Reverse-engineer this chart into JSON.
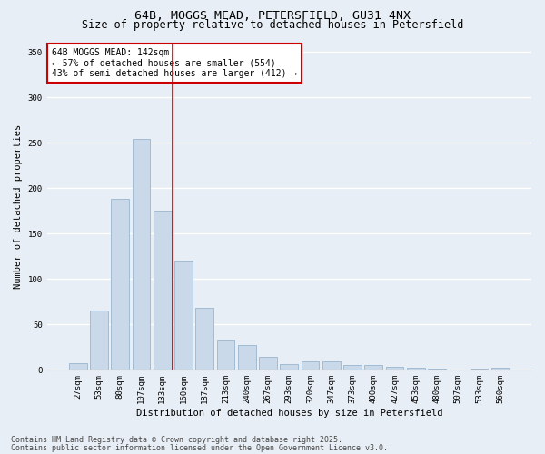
{
  "title1": "64B, MOGGS MEAD, PETERSFIELD, GU31 4NX",
  "title2": "Size of property relative to detached houses in Petersfield",
  "xlabel": "Distribution of detached houses by size in Petersfield",
  "ylabel": "Number of detached properties",
  "categories": [
    "27sqm",
    "53sqm",
    "80sqm",
    "107sqm",
    "133sqm",
    "160sqm",
    "187sqm",
    "213sqm",
    "240sqm",
    "267sqm",
    "293sqm",
    "320sqm",
    "347sqm",
    "373sqm",
    "400sqm",
    "427sqm",
    "453sqm",
    "480sqm",
    "507sqm",
    "533sqm",
    "560sqm"
  ],
  "values": [
    7,
    65,
    188,
    254,
    175,
    120,
    68,
    33,
    27,
    14,
    6,
    9,
    9,
    5,
    5,
    3,
    2,
    1,
    0,
    1,
    2
  ],
  "bar_color": "#c9d9ea",
  "bar_edge_color": "#9ab5cc",
  "vline_x": 4.5,
  "vline_color": "#cc0000",
  "annotation_text": "64B MOGGS MEAD: 142sqm\n← 57% of detached houses are smaller (554)\n43% of semi-detached houses are larger (412) →",
  "annotation_box_color": "#ffffff",
  "annotation_box_edge": "#cc0000",
  "ylim": [
    0,
    360
  ],
  "yticks": [
    0,
    50,
    100,
    150,
    200,
    250,
    300,
    350
  ],
  "footer1": "Contains HM Land Registry data © Crown copyright and database right 2025.",
  "footer2": "Contains public sector information licensed under the Open Government Licence v3.0.",
  "bg_color": "#e8eef5",
  "plot_bg_color": "#e8eef5",
  "grid_color": "#ffffff",
  "title_fontsize": 9.5,
  "subtitle_fontsize": 8.5,
  "axis_label_fontsize": 7.5,
  "tick_fontsize": 6.5,
  "annotation_fontsize": 7,
  "footer_fontsize": 6
}
